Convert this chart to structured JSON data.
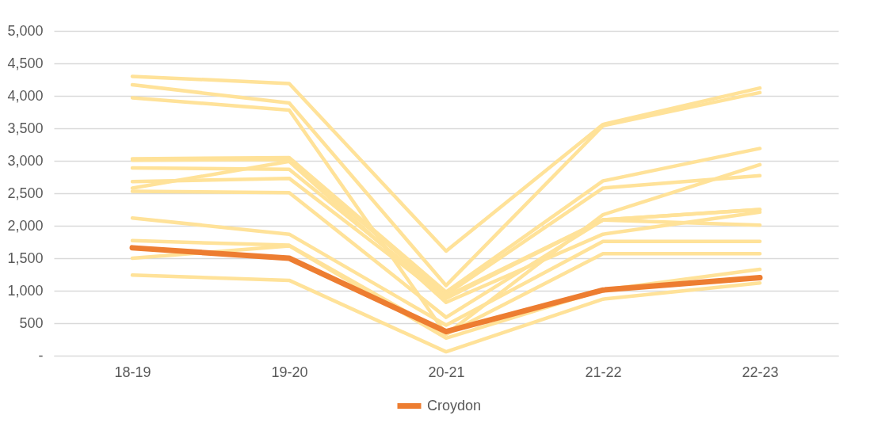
{
  "chart_data": {
    "type": "line",
    "categories": [
      "18-19",
      "19-20",
      "20-21",
      "21-22",
      "22-23"
    ],
    "series": [
      {
        "color": "#ffe299",
        "values": [
          4300,
          4190,
          1610,
          3560,
          4120
        ]
      },
      {
        "color": "#ffe299",
        "values": [
          4170,
          3890,
          1080,
          3540,
          4050
        ]
      },
      {
        "color": "#ffe299",
        "values": [
          3970,
          3780,
          330,
          2170,
          2940
        ]
      },
      {
        "color": "#ffe299",
        "values": [
          3030,
          3050,
          980,
          2690,
          3190
        ]
      },
      {
        "color": "#ffe299",
        "values": [
          3010,
          3020,
          940,
          2580,
          2770
        ]
      },
      {
        "color": "#ffe299",
        "values": [
          2890,
          2870,
          910,
          2090,
          2250
        ]
      },
      {
        "color": "#ffe299",
        "values": [
          2680,
          2730,
          880,
          2090,
          2010
        ]
      },
      {
        "color": "#ffe299",
        "values": [
          2580,
          2990,
          820,
          1870,
          2210
        ]
      },
      {
        "color": "#ffe299",
        "values": [
          2530,
          2510,
          590,
          2090,
          2250
        ]
      },
      {
        "color": "#ffe299",
        "values": [
          2120,
          1870,
          470,
          1760,
          1760
        ]
      },
      {
        "color": "#ffe299",
        "values": [
          1770,
          1700,
          330,
          1570,
          1570
        ]
      },
      {
        "color": "#ffe299",
        "values": [
          1500,
          1690,
          270,
          1010,
          1330
        ]
      },
      {
        "color": "#ffe299",
        "values": [
          1240,
          1160,
          60,
          870,
          1120
        ]
      },
      {
        "name": "Croydon",
        "color": "#ed7d31",
        "values": [
          1660,
          1500,
          370,
          1010,
          1200
        ]
      }
    ],
    "ylim": [
      0,
      5000
    ],
    "yticks": [
      {
        "value": 0,
        "label": "-"
      },
      500,
      {
        "value": 1000,
        "label": "1,000"
      },
      {
        "value": 1500,
        "label": "1,500"
      },
      {
        "value": 2000,
        "label": "2,000"
      },
      {
        "value": 2500,
        "label": "2,500"
      },
      {
        "value": 3000,
        "label": "3,000"
      },
      {
        "value": 3500,
        "label": "3,500"
      },
      {
        "value": 4000,
        "label": "4,000"
      },
      {
        "value": 4500,
        "label": "4,500"
      },
      {
        "value": 5000,
        "label": "5,000"
      }
    ],
    "grid": "y",
    "legend": "bottom",
    "marker": "none",
    "line_style": "solid"
  }
}
